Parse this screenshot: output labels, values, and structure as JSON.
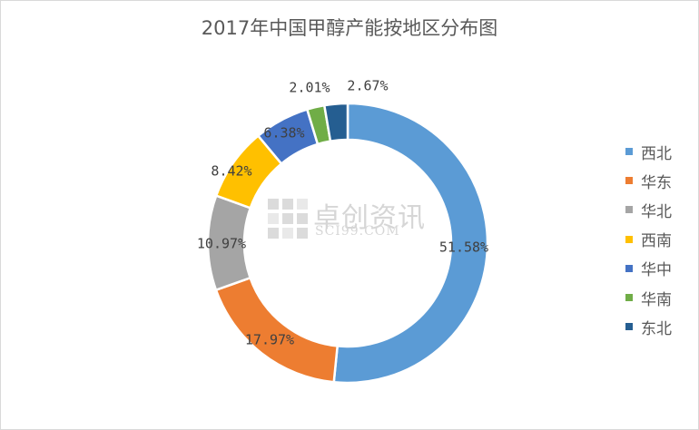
{
  "chart_data": {
    "type": "pie",
    "title": "2017年中国甲醇产能按地区分布图",
    "categories": [
      "西北",
      "华东",
      "华北",
      "西南",
      "华中",
      "华南",
      "东北"
    ],
    "values": [
      51.58,
      17.97,
      10.97,
      8.42,
      6.38,
      2.01,
      2.67
    ],
    "data_labels": [
      "51.58%",
      "17.97%",
      "10.97%",
      "8.42%",
      "6.38%",
      "2.01%",
      "2.67%"
    ],
    "colors": [
      "#5b9bd5",
      "#ed7d31",
      "#a5a5a5",
      "#ffc000",
      "#4472c4",
      "#70ad47",
      "#255e91"
    ],
    "legend_position": "right",
    "donut": true
  },
  "watermark": {
    "text_cn": "卓创资讯",
    "text_en": "SCI99.COM"
  }
}
